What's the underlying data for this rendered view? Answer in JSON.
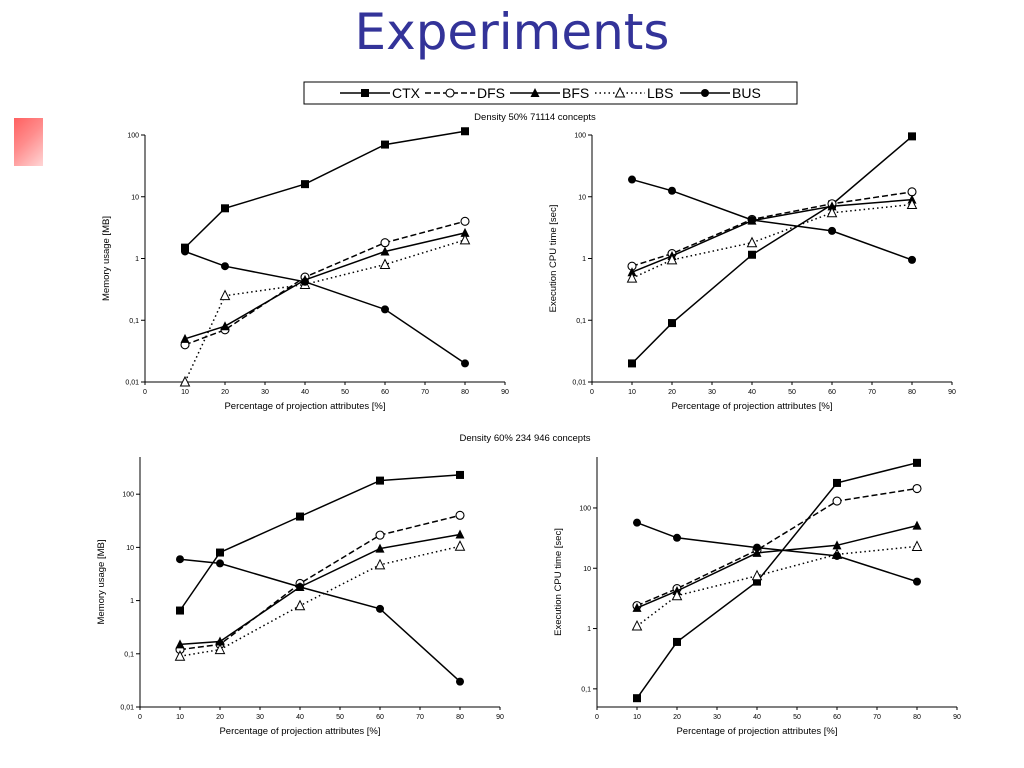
{
  "title": "Experiments",
  "legend": {
    "entries": [
      {
        "label": "CTX",
        "marker": "square-filled",
        "dash": "solid"
      },
      {
        "label": "DFS",
        "marker": "circle-open",
        "dash": "dashed"
      },
      {
        "label": "BFS",
        "marker": "triangle-filled",
        "dash": "solid"
      },
      {
        "label": "LBS",
        "marker": "triangle-open",
        "dash": "dotted"
      },
      {
        "label": "BUS",
        "marker": "circle-filled",
        "dash": "solid"
      }
    ]
  },
  "sections": [
    {
      "caption": "Density 50%  71114 concepts"
    },
    {
      "caption": "Density 60%  234 946 concepts"
    }
  ],
  "chart_data": [
    {
      "type": "line",
      "section": "Density 50%  71114 concepts",
      "xlabel": "Percentage of projection attributes [%]",
      "ylabel": "Memory usage [MB]",
      "xlim": [
        0,
        90
      ],
      "xticks": [
        0,
        10,
        20,
        30,
        40,
        50,
        60,
        70,
        80,
        90
      ],
      "ylim": [
        0.01,
        100
      ],
      "yscale": "log",
      "yticks": [
        "0,01",
        "0,1",
        "1",
        "10",
        "100"
      ],
      "x": [
        10,
        20,
        40,
        60,
        80
      ],
      "series": [
        {
          "name": "CTX",
          "values": [
            1.5,
            6.5,
            16,
            70,
            115
          ]
        },
        {
          "name": "DFS",
          "values": [
            0.04,
            0.07,
            0.5,
            1.8,
            4
          ]
        },
        {
          "name": "BFS",
          "values": [
            0.05,
            0.08,
            0.45,
            1.3,
            2.6
          ]
        },
        {
          "name": "LBS",
          "values": [
            0.01,
            0.25,
            0.38,
            0.8,
            2.0
          ]
        },
        {
          "name": "BUS",
          "values": [
            1.3,
            0.75,
            0.42,
            0.15,
            0.02
          ]
        }
      ]
    },
    {
      "type": "line",
      "section": "Density 50%  71114 concepts",
      "xlabel": "Percentage of projection attributes [%]",
      "ylabel": "Execution CPU time [sec]",
      "xlim": [
        0,
        90
      ],
      "xticks": [
        0,
        10,
        20,
        30,
        40,
        50,
        60,
        70,
        80,
        90
      ],
      "ylim": [
        0.01,
        100
      ],
      "yscale": "log",
      "yticks": [
        "0,01",
        "0,1",
        "1",
        "10",
        "100"
      ],
      "x": [
        10,
        20,
        40,
        60,
        80
      ],
      "series": [
        {
          "name": "CTX",
          "values": [
            0.02,
            0.09,
            1.15,
            7.5,
            95
          ]
        },
        {
          "name": "DFS",
          "values": [
            0.75,
            1.2,
            4.3,
            7.7,
            12
          ]
        },
        {
          "name": "BFS",
          "values": [
            0.6,
            1.1,
            4.1,
            7,
            9
          ]
        },
        {
          "name": "LBS",
          "values": [
            0.48,
            0.95,
            1.8,
            5.5,
            7.5
          ]
        },
        {
          "name": "BUS",
          "values": [
            19,
            12.5,
            4.2,
            2.8,
            0.95
          ]
        }
      ]
    },
    {
      "type": "line",
      "section": "Density 60%  234 946 concepts",
      "xlabel": "Percentage of projection attributes [%]",
      "ylabel": "Memory usage [MB]",
      "xlim": [
        0,
        90
      ],
      "xticks": [
        0,
        10,
        20,
        30,
        40,
        50,
        60,
        70,
        80,
        90
      ],
      "ylim": [
        0.01,
        500
      ],
      "yscale": "log",
      "yticks": [
        "0,01",
        "0,1",
        "1",
        "10",
        "100"
      ],
      "x": [
        10,
        20,
        40,
        60,
        80
      ],
      "series": [
        {
          "name": "CTX",
          "values": [
            0.65,
            8,
            38,
            180,
            230
          ]
        },
        {
          "name": "DFS",
          "values": [
            0.12,
            0.15,
            2.1,
            17,
            40
          ]
        },
        {
          "name": "BFS",
          "values": [
            0.15,
            0.17,
            1.8,
            9.5,
            17.5
          ]
        },
        {
          "name": "LBS",
          "values": [
            0.09,
            0.12,
            0.8,
            4.7,
            10.5
          ]
        },
        {
          "name": "BUS",
          "values": [
            6,
            5,
            1.8,
            0.7,
            0.03
          ]
        }
      ]
    },
    {
      "type": "line",
      "section": "Density 60%  234 946 concepts",
      "xlabel": "Percentage of projection attributes [%]",
      "ylabel": "Execution CPU time [sec]",
      "xlim": [
        0,
        90
      ],
      "xticks": [
        0,
        10,
        20,
        30,
        40,
        50,
        60,
        70,
        80,
        90
      ],
      "ylim": [
        0.05,
        700
      ],
      "yscale": "log",
      "yticks": [
        "0,1",
        "1",
        "10",
        "100"
      ],
      "x": [
        10,
        20,
        40,
        60,
        80
      ],
      "series": [
        {
          "name": "CTX",
          "values": [
            0.07,
            0.6,
            6,
            260,
            560
          ]
        },
        {
          "name": "DFS",
          "values": [
            2.4,
            4.6,
            20,
            130,
            210
          ]
        },
        {
          "name": "BFS",
          "values": [
            2.2,
            4.2,
            18,
            24,
            51
          ]
        },
        {
          "name": "LBS",
          "values": [
            1.1,
            3.5,
            7.5,
            17,
            23
          ]
        },
        {
          "name": "BUS",
          "values": [
            57,
            32,
            22,
            16,
            6
          ]
        }
      ]
    }
  ]
}
